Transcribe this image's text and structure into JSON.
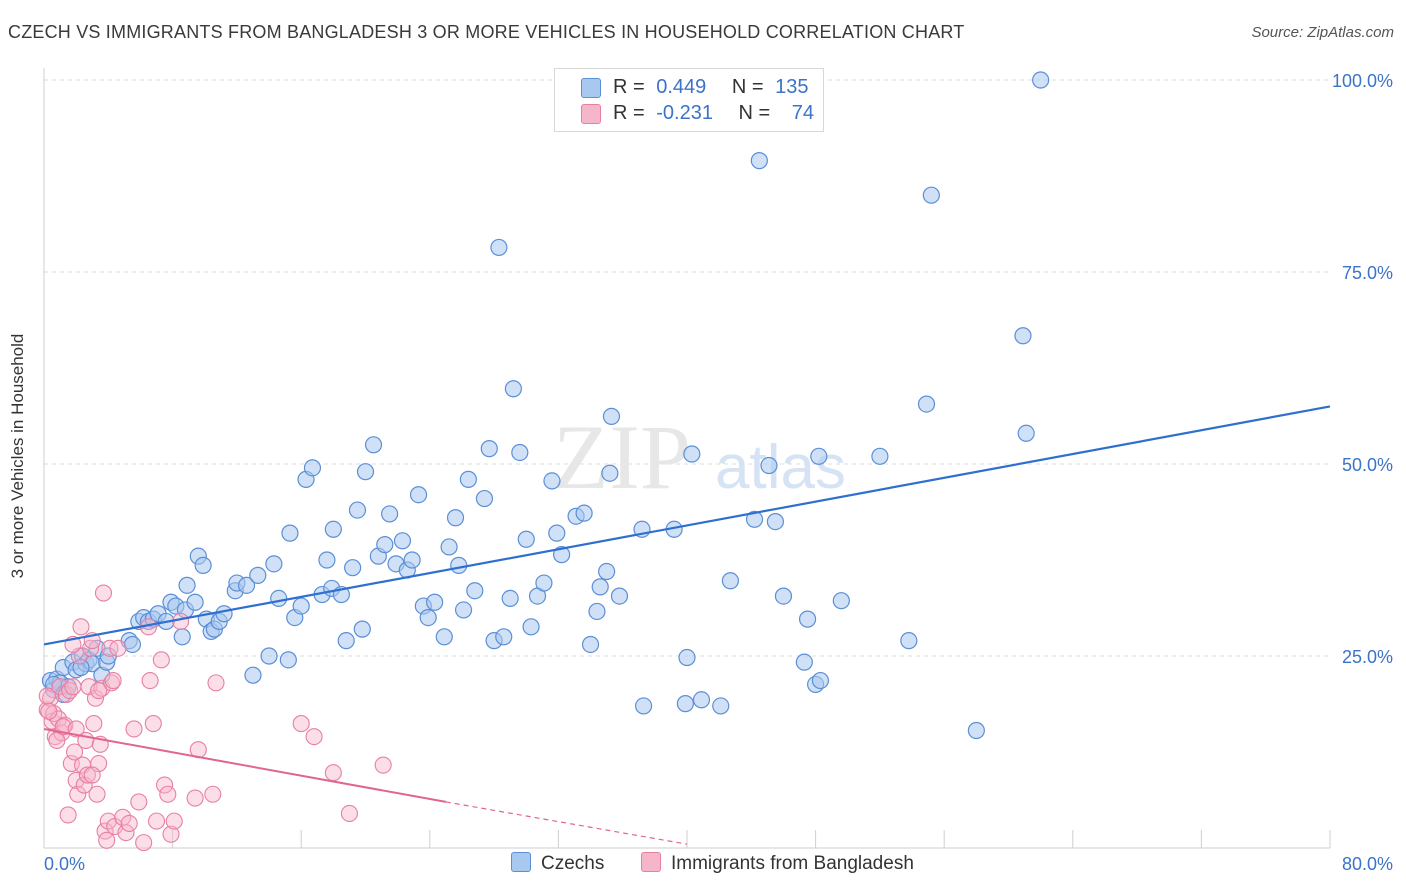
{
  "title": "CZECH VS IMMIGRANTS FROM BANGLADESH 3 OR MORE VEHICLES IN HOUSEHOLD CORRELATION CHART",
  "source": "Source: ZipAtlas.com",
  "watermark": {
    "zip": "ZIP",
    "atlas": "atlas"
  },
  "legend": {
    "rows": [
      {
        "r_label": "R =",
        "r_value": "0.449",
        "n_label": "N =",
        "n_value": "135",
        "color": "#a9c8f0"
      },
      {
        "r_label": "R =",
        "r_value": "-0.231",
        "n_label": "N =",
        "n_value": "74",
        "color": "#f6b6ca"
      }
    ]
  },
  "bottom_legend": [
    {
      "label": "Czechs",
      "color": "#a9c8f0"
    },
    {
      "label": "Immigrants from Bangladesh",
      "color": "#f6b6ca"
    }
  ],
  "chart_data": {
    "type": "scatter",
    "title": "CZECH VS IMMIGRANTS FROM BANGLADESH 3 OR MORE VEHICLES IN HOUSEHOLD CORRELATION CHART",
    "xlabel": "",
    "ylabel": "3 or more Vehicles in Household",
    "xlim": [
      0,
      80
    ],
    "ylim": [
      0,
      100
    ],
    "x_tick_labels": [
      "0.0%",
      "80.0%"
    ],
    "y_tick_labels": [
      "25.0%",
      "50.0%",
      "75.0%",
      "100.0%"
    ],
    "y_ticks": [
      25,
      50,
      75,
      100
    ],
    "grid": true,
    "colors": {
      "czechs": "#5b8fd6",
      "czechs_fill": "#a9c8f0",
      "bangladesh": "#e87fa3",
      "bangladesh_fill": "#f6b6ca",
      "czechs_line": "#2f6fcf",
      "bangladesh_line": "#e0658f",
      "tick_text": "#3b73c9"
    },
    "series": [
      {
        "name": "Czechs",
        "points": [
          [
            0.4,
            21.8
          ],
          [
            0.6,
            20.6
          ],
          [
            0.8,
            22.0
          ],
          [
            1.0,
            21.5
          ],
          [
            1.2,
            23.5
          ],
          [
            1.5,
            21.0
          ],
          [
            1.8,
            24.2
          ],
          [
            2.0,
            23.2
          ],
          [
            2.4,
            25.0
          ],
          [
            2.6,
            24.0
          ],
          [
            2.8,
            24.5
          ],
          [
            3.0,
            24.0
          ],
          [
            3.3,
            26.0
          ],
          [
            3.6,
            22.5
          ],
          [
            3.9,
            24.2
          ],
          [
            4.0,
            25.0
          ],
          [
            5.3,
            27.0
          ],
          [
            5.5,
            26.5
          ],
          [
            5.9,
            29.5
          ],
          [
            6.2,
            30.0
          ],
          [
            6.5,
            29.5
          ],
          [
            6.8,
            29.8
          ],
          [
            7.1,
            30.5
          ],
          [
            7.6,
            29.5
          ],
          [
            7.9,
            32.0
          ],
          [
            8.2,
            31.5
          ],
          [
            8.6,
            27.5
          ],
          [
            8.8,
            31.0
          ],
          [
            8.9,
            34.2
          ],
          [
            9.4,
            32.0
          ],
          [
            9.6,
            38.0
          ],
          [
            9.9,
            36.8
          ],
          [
            10.1,
            29.8
          ],
          [
            10.4,
            28.2
          ],
          [
            10.6,
            28.5
          ],
          [
            10.9,
            29.5
          ],
          [
            11.2,
            30.5
          ],
          [
            11.9,
            33.5
          ],
          [
            12.0,
            34.5
          ],
          [
            12.6,
            34.2
          ],
          [
            13.0,
            22.5
          ],
          [
            13.3,
            35.5
          ],
          [
            14.0,
            25.0
          ],
          [
            14.3,
            37.0
          ],
          [
            14.6,
            32.5
          ],
          [
            15.2,
            24.5
          ],
          [
            15.3,
            41.0
          ],
          [
            15.6,
            30.0
          ],
          [
            16.0,
            31.5
          ],
          [
            16.3,
            48.0
          ],
          [
            16.7,
            49.5
          ],
          [
            17.3,
            33.0
          ],
          [
            17.6,
            37.5
          ],
          [
            17.9,
            33.8
          ],
          [
            18.0,
            41.5
          ],
          [
            18.5,
            33.0
          ],
          [
            18.8,
            27.0
          ],
          [
            19.2,
            36.5
          ],
          [
            19.5,
            44.0
          ],
          [
            19.8,
            28.5
          ],
          [
            20.0,
            49.0
          ],
          [
            20.5,
            52.5
          ],
          [
            20.8,
            38.0
          ],
          [
            21.2,
            39.5
          ],
          [
            21.5,
            43.5
          ],
          [
            21.9,
            37.0
          ],
          [
            22.3,
            40.0
          ],
          [
            22.6,
            36.2
          ],
          [
            22.9,
            37.5
          ],
          [
            23.3,
            46.0
          ],
          [
            23.6,
            31.5
          ],
          [
            23.9,
            30.0
          ],
          [
            24.3,
            32.0
          ],
          [
            24.9,
            27.5
          ],
          [
            25.2,
            39.2
          ],
          [
            25.6,
            43.0
          ],
          [
            25.8,
            36.8
          ],
          [
            26.1,
            31.0
          ],
          [
            26.4,
            48.0
          ],
          [
            26.8,
            33.5
          ],
          [
            27.4,
            45.5
          ],
          [
            27.7,
            52.0
          ],
          [
            28.0,
            27.0
          ],
          [
            28.6,
            27.5
          ],
          [
            28.3,
            78.2
          ],
          [
            29.0,
            32.5
          ],
          [
            29.2,
            59.8
          ],
          [
            29.6,
            51.5
          ],
          [
            30.0,
            40.2
          ],
          [
            30.3,
            28.8
          ],
          [
            30.7,
            32.8
          ],
          [
            31.1,
            34.5
          ],
          [
            31.6,
            47.8
          ],
          [
            31.9,
            41.0
          ],
          [
            32.2,
            38.2
          ],
          [
            33.1,
            43.2
          ],
          [
            33.6,
            43.6
          ],
          [
            34.0,
            26.5
          ],
          [
            34.4,
            30.8
          ],
          [
            34.6,
            34.0
          ],
          [
            35.0,
            36.0
          ],
          [
            35.2,
            48.8
          ],
          [
            35.3,
            56.2
          ],
          [
            35.8,
            32.8
          ],
          [
            37.3,
            18.5
          ],
          [
            37.2,
            41.5
          ],
          [
            39.2,
            41.5
          ],
          [
            39.9,
            18.8
          ],
          [
            40.0,
            24.8
          ],
          [
            40.3,
            51.3
          ],
          [
            40.9,
            19.3
          ],
          [
            42.1,
            18.5
          ],
          [
            42.7,
            34.8
          ],
          [
            44.2,
            42.8
          ],
          [
            44.5,
            89.5
          ],
          [
            45.1,
            49.8
          ],
          [
            45.5,
            42.5
          ],
          [
            46.0,
            32.8
          ],
          [
            47.3,
            24.2
          ],
          [
            47.5,
            29.8
          ],
          [
            48.0,
            21.3
          ],
          [
            48.3,
            21.8
          ],
          [
            48.2,
            51.0
          ],
          [
            49.6,
            32.2
          ],
          [
            52.0,
            51.0
          ],
          [
            53.8,
            27.0
          ],
          [
            54.9,
            57.8
          ],
          [
            55.2,
            85.0
          ],
          [
            58.0,
            15.3
          ],
          [
            60.9,
            66.7
          ],
          [
            61.1,
            54.0
          ],
          [
            62.0,
            100.0
          ],
          [
            0.6,
            21.3
          ],
          [
            1.2,
            20.0
          ],
          [
            2.3,
            23.5
          ]
        ]
      },
      {
        "name": "Immigrants from Bangladesh",
        "points": [
          [
            0.2,
            18.0
          ],
          [
            0.4,
            19.5
          ],
          [
            0.5,
            16.5
          ],
          [
            0.6,
            17.5
          ],
          [
            0.7,
            14.5
          ],
          [
            0.9,
            16.8
          ],
          [
            1.0,
            21.0
          ],
          [
            1.1,
            15.0
          ],
          [
            1.3,
            16.0
          ],
          [
            1.4,
            20.0
          ],
          [
            1.5,
            4.3
          ],
          [
            1.6,
            20.5
          ],
          [
            1.7,
            11.0
          ],
          [
            1.8,
            21.0
          ],
          [
            1.9,
            12.5
          ],
          [
            2.0,
            8.8
          ],
          [
            2.1,
            7.0
          ],
          [
            2.2,
            25.0
          ],
          [
            2.3,
            28.8
          ],
          [
            2.4,
            10.8
          ],
          [
            2.5,
            8.2
          ],
          [
            2.6,
            14.0
          ],
          [
            2.7,
            9.5
          ],
          [
            2.8,
            21.0
          ],
          [
            2.9,
            26.0
          ],
          [
            3.0,
            27.0
          ],
          [
            3.1,
            16.2
          ],
          [
            3.2,
            19.5
          ],
          [
            3.3,
            7.0
          ],
          [
            3.4,
            11.0
          ],
          [
            3.5,
            13.5
          ],
          [
            3.6,
            20.8
          ],
          [
            3.7,
            33.2
          ],
          [
            3.8,
            2.2
          ],
          [
            3.9,
            1.0
          ],
          [
            4.0,
            3.5
          ],
          [
            4.1,
            26.0
          ],
          [
            4.2,
            21.5
          ],
          [
            4.3,
            21.8
          ],
          [
            4.4,
            2.8
          ],
          [
            4.9,
            4.0
          ],
          [
            5.1,
            2.0
          ],
          [
            5.3,
            3.2
          ],
          [
            5.6,
            15.5
          ],
          [
            5.9,
            6.0
          ],
          [
            6.2,
            0.7
          ],
          [
            6.5,
            28.8
          ],
          [
            6.6,
            21.8
          ],
          [
            6.8,
            16.2
          ],
          [
            7.0,
            3.5
          ],
          [
            7.3,
            24.5
          ],
          [
            7.5,
            8.2
          ],
          [
            7.7,
            7.0
          ],
          [
            7.9,
            1.8
          ],
          [
            8.1,
            3.5
          ],
          [
            8.5,
            29.5
          ],
          [
            9.4,
            6.5
          ],
          [
            9.6,
            12.8
          ],
          [
            10.5,
            7.0
          ],
          [
            10.7,
            21.5
          ],
          [
            16.0,
            16.2
          ],
          [
            16.8,
            14.5
          ],
          [
            18.0,
            9.8
          ],
          [
            19.0,
            4.5
          ],
          [
            21.1,
            10.8
          ],
          [
            0.3,
            17.8
          ],
          [
            0.8,
            14.0
          ],
          [
            1.2,
            15.8
          ],
          [
            2.0,
            15.5
          ],
          [
            3.0,
            9.5
          ],
          [
            3.4,
            20.5
          ],
          [
            4.6,
            26.0
          ],
          [
            0.2,
            19.8
          ],
          [
            1.8,
            26.5
          ]
        ]
      }
    ],
    "trend_lines": [
      {
        "series": "Czechs",
        "x": [
          0,
          80
        ],
        "y": [
          26.5,
          57.5
        ]
      },
      {
        "series": "Immigrants from Bangladesh",
        "x": [
          0,
          25
        ],
        "y": [
          15.5,
          6.0
        ],
        "dashed_x": [
          25,
          40
        ],
        "dashed_y": [
          6.0,
          0.5
        ]
      }
    ]
  }
}
